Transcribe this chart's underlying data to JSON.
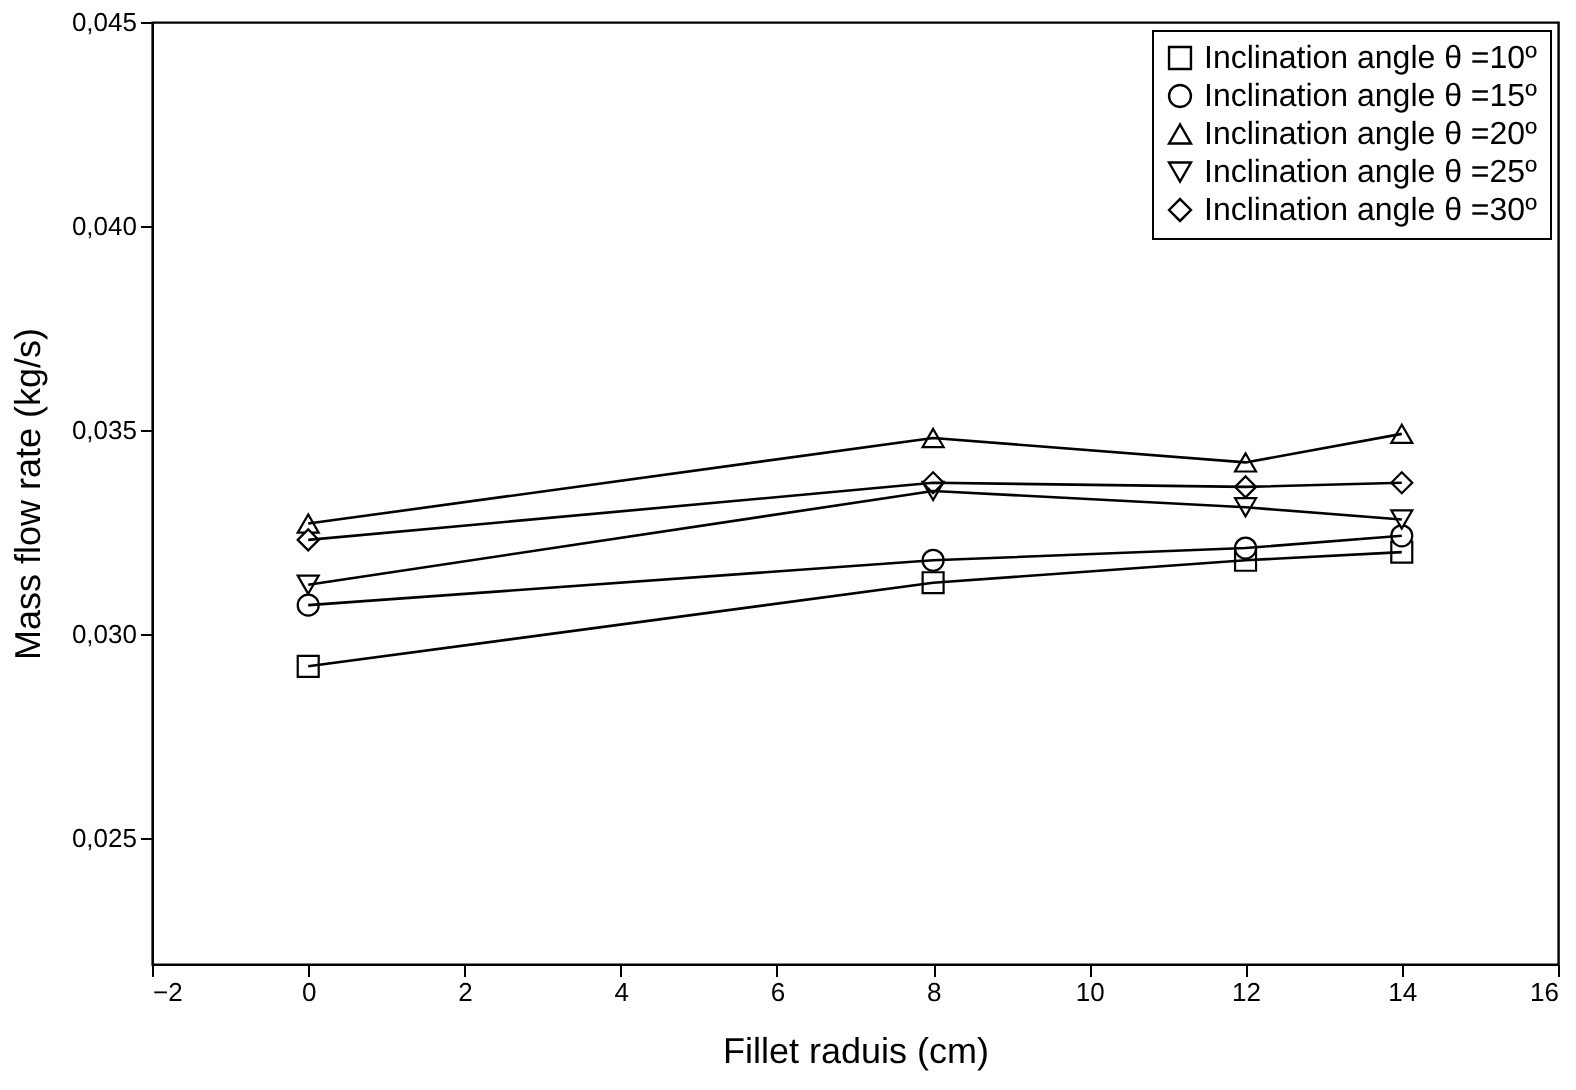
{
  "chart_data": {
    "type": "line",
    "xlabel": "Fillet raduis (cm)",
    "ylabel": "Mass flow rate (kg/s)",
    "x": [
      0,
      8,
      12,
      14
    ],
    "series": [
      {
        "name": "Inclination angle θ =10º",
        "color": "#000000",
        "marker": "square",
        "values": [
          0.0292,
          0.03125,
          0.0318,
          0.032
        ]
      },
      {
        "name": "Inclination angle θ =15º",
        "color": "#000000",
        "marker": "circle",
        "values": [
          0.0307,
          0.0318,
          0.0321,
          0.0324
        ]
      },
      {
        "name": "Inclination angle θ =20º",
        "color": "#000000",
        "marker": "triangle",
        "values": [
          0.0327,
          0.0348,
          0.0342,
          0.0349
        ]
      },
      {
        "name": "Inclination angle θ =25º",
        "color": "#000000",
        "marker": "triangle-down",
        "values": [
          0.0312,
          0.0335,
          0.0331,
          0.0328
        ]
      },
      {
        "name": "Inclination angle θ =30º",
        "color": "#000000",
        "marker": "diamond",
        "values": [
          0.0323,
          0.0337,
          0.0336,
          0.0337
        ]
      }
    ],
    "xlim": [
      -2,
      16
    ],
    "xticks": [
      {
        "value": -2,
        "label": "−2"
      },
      0,
      2,
      4,
      6,
      8,
      10,
      12,
      14,
      16
    ],
    "ylim": [
      0.0219,
      0.045
    ],
    "yticks": [
      {
        "value": 0.025,
        "label": "0,025"
      },
      {
        "value": 0.03,
        "label": "0,030"
      },
      {
        "value": 0.035,
        "label": "0,035"
      },
      {
        "value": 0.04,
        "label": "0,040"
      },
      {
        "value": 0.045,
        "label": "0,045"
      }
    ],
    "grid": false,
    "legend": "top right",
    "line_style": "solid"
  }
}
